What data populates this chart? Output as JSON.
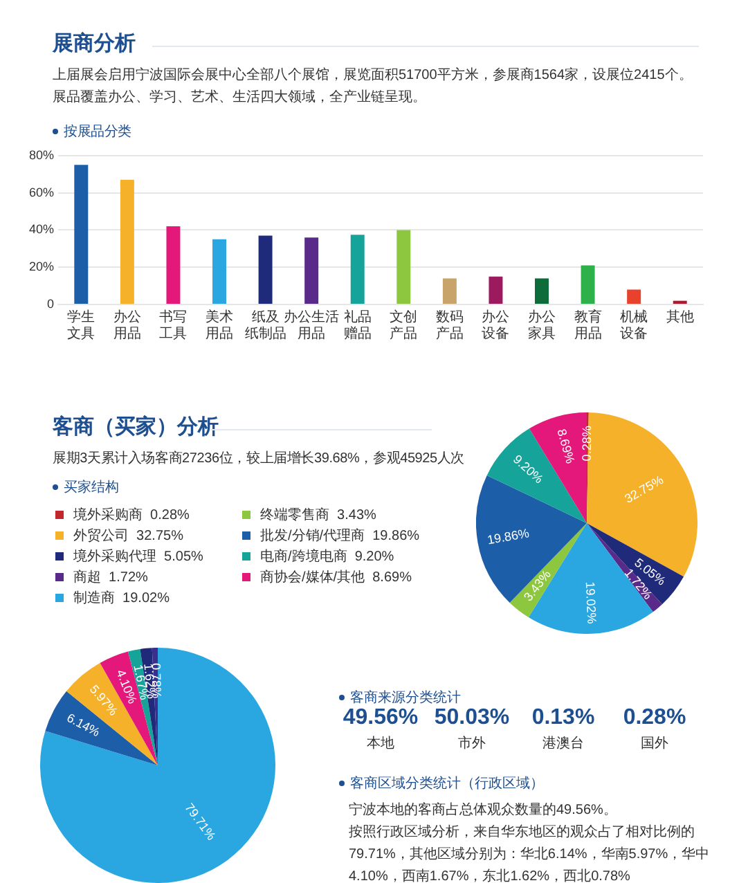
{
  "chart_data": [
    {
      "type": "bar",
      "title": "展商分析",
      "subtitle": "按展品分类",
      "annotations": [
        "上届展会启用宁波国际会展中心全部八个展馆，展览面积51700平方米，参展商1564家，设展位2415个。",
        "展品覆盖办公、学习、艺术、生活四大领域，全产业链呈现。"
      ],
      "categories": [
        "学生文具",
        "办公用品",
        "书写工具",
        "美术用品",
        "纸及纸制品",
        "办公生活用品",
        "礼品赠品",
        "文创产品",
        "数码产品",
        "办公设备",
        "办公家具",
        "教育用品",
        "机械设备",
        "其他"
      ],
      "values": [
        75,
        67,
        42,
        35,
        37,
        36,
        37.5,
        40,
        14,
        15,
        14,
        21,
        8,
        2
      ],
      "colors": [
        "#1d5ea8",
        "#f5b12a",
        "#e4187a",
        "#2aa7e0",
        "#1f2a7a",
        "#5a2a8a",
        "#16a39a",
        "#8dc63f",
        "#c9a46a",
        "#9e1a5e",
        "#0e6b3a",
        "#2eb04a",
        "#e8412c",
        "#b0182e"
      ],
      "ylim": [
        0,
        80
      ],
      "yticks": [
        {
          "value": 0,
          "label": "0"
        },
        {
          "value": 20,
          "label": "20%"
        },
        {
          "value": 40,
          "label": "40%"
        },
        {
          "value": 60,
          "label": "60%"
        },
        {
          "value": 80,
          "label": "80%"
        }
      ],
      "grid": "y"
    },
    {
      "type": "pie",
      "title": "客商（买家）分析",
      "subtitle": "展期3天累计入场客商27236位，较上届增长39.68%，参观45925人次",
      "legend_title": "买家结构",
      "legend": "left",
      "categories": [
        "境外采购商",
        "外贸公司",
        "境外采购代理",
        "商超",
        "制造商",
        "终端零售商",
        "批发/分销/代理商",
        "电商/跨境电商",
        "商协会/媒体/其他"
      ],
      "values": [
        0.28,
        32.75,
        5.05,
        1.72,
        19.02,
        3.43,
        19.86,
        9.2,
        8.69
      ],
      "value_labels": [
        "0.28%",
        "32.75%",
        "5.05%",
        "1.72%",
        "19.02%",
        "3.43%",
        "19.86%",
        "9.20%",
        "8.69%"
      ],
      "colors": [
        "#c0282e",
        "#f5b12a",
        "#1f2a7a",
        "#5a2a8a",
        "#2aa7e0",
        "#8dc63f",
        "#1d5ea8",
        "#16a39a",
        "#e4187a"
      ]
    },
    {
      "type": "pie",
      "title": "客商区域分类统计（行政区域）",
      "annotations": [
        "宁波本地的客商占总体观众数量的49.56%。",
        "按照行政区域分析，来自华东地区的观众占了相对比例的79.71%，其他区域分别为：华北6.14%，华南5.97%，华中4.10%，西南1.67%，东北1.62%，西北0.78%"
      ],
      "categories": [
        null,
        null,
        null,
        null,
        null,
        null,
        null
      ],
      "values": [
        79.71,
        6.14,
        5.97,
        4.1,
        1.67,
        1.62,
        0.78
      ],
      "value_labels": [
        "79.71%",
        "6.14%",
        "5.97%",
        "4.10%",
        "1.67%",
        "1.62%",
        "0.78%"
      ],
      "colors": [
        "#2aa7e0",
        "#1d5ea8",
        "#f5b12a",
        "#e4187a",
        "#16a39a",
        "#1f2a7a",
        "#3b2e8c"
      ]
    },
    {
      "type": "other",
      "title": "客商来源分类统计",
      "annotations": [
        "49.56%",
        "本地",
        "50.03%",
        "市外",
        "0.13%",
        "港澳台",
        "0.28%",
        "国外"
      ]
    }
  ]
}
